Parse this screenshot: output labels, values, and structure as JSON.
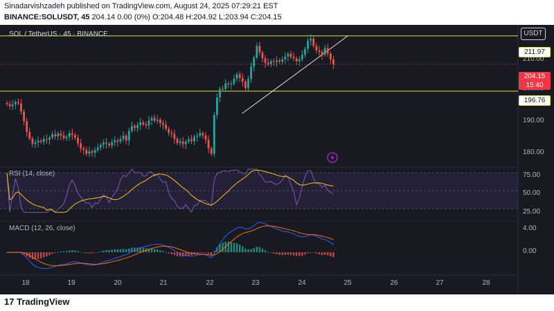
{
  "header": {
    "line1": "Sinadarvishzadeh published on TradingView.com, August 24, 2025 07:29:21 EST",
    "symbol": "BINANCE:SOLUSDT, 45",
    "ohlc": "204.14 0.00 (0%) O:204.48 H:204.92 L:203.94 C:204.15"
  },
  "chart_title": "SOL / TetherUS · 45 · BINANCE",
  "currency": "USDT",
  "price_tags": {
    "upper": "211.97",
    "lower": "196.76",
    "current": "204.15",
    "countdown": "15:40"
  },
  "footer": {
    "brand": "TradingView"
  },
  "colors": {
    "up": "#26a69a",
    "down": "#ef5350",
    "level": "#f0e030",
    "rsi": "#7e57c2",
    "signal": "#f7c600",
    "macd": "#2962ff",
    "macd_signal": "#ff6d00"
  },
  "chart_data": [
    {
      "type": "candlestick",
      "title": "SOL / TetherUS · 45 · BINANCE",
      "y_ticks": [
        "180.00",
        "190.00",
        "200.00",
        "210.00"
      ],
      "ylim": [
        176,
        215
      ],
      "x_ticks": [
        "18",
        "19",
        "20",
        "21",
        "22",
        "23",
        "24",
        "25",
        "26",
        "27",
        "28"
      ],
      "levels": [
        211.97,
        196.76
      ],
      "current_price": 204.15,
      "trendline": {
        "from": [
          22.7,
          190.6
        ],
        "to": [
          25,
          212
        ]
      },
      "close": [
        193.2,
        192.6,
        193.1,
        193.8,
        193.4,
        191.2,
        188.5,
        185.5,
        183.7,
        182.2,
        182.6,
        183.1,
        182.8,
        183.6,
        183.4,
        184.0,
        184.9,
        184.3,
        185.1,
        184.6,
        183.8,
        184.2,
        185.2,
        184.7,
        183.9,
        182.4,
        181.0,
        180.6,
        179.5,
        180.2,
        179.8,
        180.5,
        181.2,
        182.0,
        182.6,
        182.3,
        181.8,
        182.7,
        183.2,
        182.9,
        183.6,
        184.5,
        183.2,
        185.8,
        187.2,
        186.6,
        187.4,
        188.2,
        187.6,
        187.3,
        188.7,
        189.4,
        188.6,
        188.9,
        188.0,
        187.5,
        186.4,
        185.3,
        185.0,
        183.6,
        182.5,
        182.9,
        182.2,
        182.9,
        183.5,
        183.0,
        184.2,
        184.5,
        185.2,
        184.6,
        183.4,
        181.0,
        179.5,
        190.2,
        195.0,
        197.4,
        197.3,
        198.9,
        198.6,
        198.8,
        200.2,
        201.4,
        200.4,
        199.4,
        197.6,
        200.1,
        203.5,
        206.0,
        209.2,
        207.4,
        205.8,
        204.6,
        204.2,
        205.0,
        204.8,
        205.2,
        204.9,
        205.5,
        206.3,
        207.0,
        206.2,
        205.8,
        205.0,
        205.5,
        206.8,
        208.4,
        210.6,
        211.2,
        209.2,
        208.0,
        207.6,
        206.8,
        208.6,
        207.1,
        205.5,
        204.15
      ],
      "pane_rsi": {
        "label": "RSI (14, close)",
        "y_ticks": [
          "75.00",
          "50.00",
          "25.00"
        ]
      },
      "pane_macd": {
        "label": "MACD (12, 26, close)",
        "y_ticks": [
          "4.00",
          "0.00"
        ]
      }
    }
  ]
}
